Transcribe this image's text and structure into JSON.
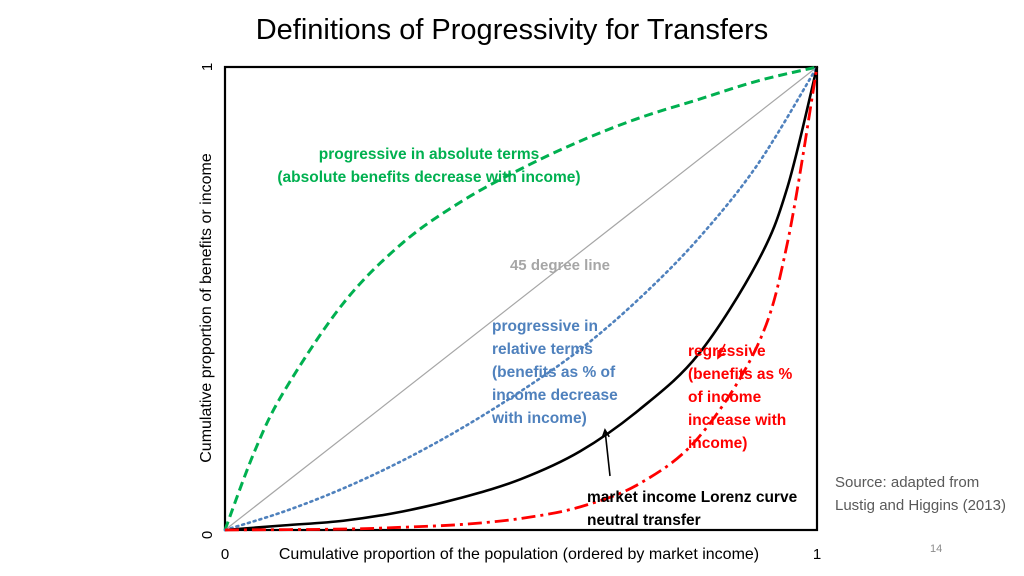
{
  "slide": {
    "title": "Definitions of Progressivity for Transfers",
    "source": "Source: adapted from Lustig and Higgins (2013)",
    "page_number": "14"
  },
  "chart_data": {
    "type": "line",
    "xlabel": "Cumulative proportion of the population (ordered by market income)",
    "ylabel": "Cumulative proportion of benefits or income",
    "xlim": [
      0,
      1
    ],
    "ylim": [
      0,
      1
    ],
    "x_ticks": [
      "0",
      "1"
    ],
    "y_ticks": [
      "0",
      "1"
    ],
    "grid": false,
    "legend": "none",
    "series": [
      {
        "key": "absolute",
        "color": "#00b050",
        "style": "dashed",
        "x": [
          0,
          0.05,
          0.1,
          0.2,
          0.3,
          0.4,
          0.5,
          0.6,
          0.7,
          0.8,
          0.9,
          1
        ],
        "y": [
          0,
          0.17,
          0.3,
          0.49,
          0.62,
          0.71,
          0.78,
          0.84,
          0.89,
          0.93,
          0.97,
          1
        ]
      },
      {
        "key": "diagonal",
        "color": "#a6a6a6",
        "style": "solid",
        "x": [
          0,
          1
        ],
        "y": [
          0,
          1
        ]
      },
      {
        "key": "relative",
        "color": "#4f81bd",
        "style": "dotted",
        "x": [
          0,
          0.1,
          0.2,
          0.3,
          0.4,
          0.5,
          0.6,
          0.7,
          0.8,
          0.9,
          1
        ],
        "y": [
          0,
          0.04,
          0.09,
          0.15,
          0.22,
          0.3,
          0.39,
          0.5,
          0.63,
          0.79,
          1
        ]
      },
      {
        "key": "lorenz",
        "color": "#000000",
        "style": "solid",
        "x": [
          0,
          0.1,
          0.2,
          0.3,
          0.4,
          0.5,
          0.6,
          0.7,
          0.8,
          0.9,
          0.95,
          1
        ],
        "y": [
          0,
          0.01,
          0.02,
          0.04,
          0.07,
          0.11,
          0.17,
          0.26,
          0.38,
          0.58,
          0.74,
          1
        ]
      },
      {
        "key": "regressive",
        "color": "#ff0000",
        "style": "dashdot",
        "x": [
          0,
          0.2,
          0.3,
          0.4,
          0.5,
          0.6,
          0.7,
          0.8,
          0.9,
          0.95,
          1
        ],
        "y": [
          0,
          0.002,
          0.006,
          0.012,
          0.025,
          0.05,
          0.1,
          0.2,
          0.4,
          0.62,
          1
        ]
      }
    ],
    "annotations": [
      {
        "key": "absolute",
        "color": "#00b050",
        "lines": [
          "progressive in absolute terms",
          "(absolute benefits decrease with income)"
        ]
      },
      {
        "key": "diagonal",
        "color": "#a6a6a6",
        "lines": [
          "45 degree line"
        ]
      },
      {
        "key": "relative",
        "color": "#4f81bd",
        "lines": [
          "progressive in",
          "relative terms",
          "(benefits as % of",
          "income decrease",
          "with income)"
        ]
      },
      {
        "key": "regressive",
        "color": "#ff0000",
        "lines": [
          "regressive",
          "(benefits as %",
          "of income",
          "increase with",
          "income)"
        ]
      },
      {
        "key": "lorenz",
        "color": "#000000",
        "lines": [
          "market income Lorenz curve",
          "neutral transfer"
        ]
      }
    ]
  }
}
